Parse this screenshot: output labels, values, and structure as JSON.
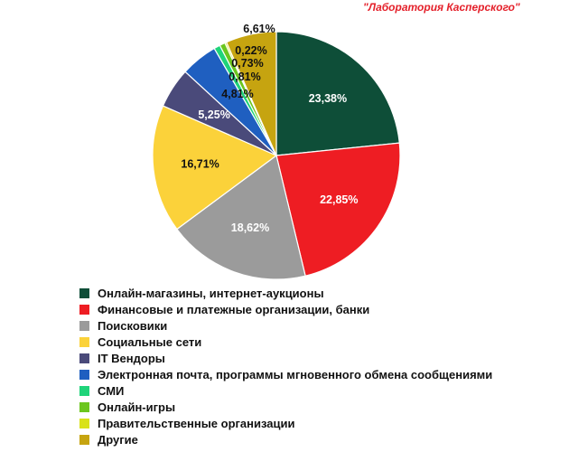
{
  "source_label": "\"Лаборатория Касперского\"",
  "chart_data": {
    "type": "pie",
    "start_angle_deg": 0,
    "direction": "clockwise",
    "legend_position": "bottom-left",
    "slices": [
      {
        "name": "Онлайн-магазины, интернет-аукционы",
        "value": 23.38,
        "label": "23,38%",
        "color": "#0e4e38",
        "label_color": "#ffffff"
      },
      {
        "name": "Финансовые и платежные организации, банки",
        "value": 22.85,
        "label": "22,85%",
        "color": "#ee1d23",
        "label_color": "#ffffff"
      },
      {
        "name": "Поисковики",
        "value": 18.62,
        "label": "18,62%",
        "color": "#9b9b9b",
        "label_color": "#ffffff"
      },
      {
        "name": "Социальные сети",
        "value": 16.71,
        "label": "16,71%",
        "color": "#fbd23a",
        "label_color": "#111111"
      },
      {
        "name": "IT Вендоры",
        "value": 5.25,
        "label": "5,25%",
        "color": "#4a4a7a",
        "label_color": "#ffffff"
      },
      {
        "name": "Электронная почта, программы мгновенного обмена сообщениями",
        "value": 4.81,
        "label": "4,81%",
        "color": "#1f5fc0",
        "label_color": "#111111"
      },
      {
        "name": "СМИ",
        "value": 0.81,
        "label": "0,81%",
        "color": "#1fd47a",
        "label_color": "#111111"
      },
      {
        "name": "Онлайн-игры",
        "value": 0.73,
        "label": "0,73%",
        "color": "#6cc61e",
        "label_color": "#111111"
      },
      {
        "name": "Правительственные организации",
        "value": 0.22,
        "label": "0,22%",
        "color": "#d9e21a",
        "label_color": "#111111"
      },
      {
        "name": "Другие",
        "value": 6.61,
        "label": "6,61%",
        "color": "#c6a410",
        "label_color": "#111111"
      }
    ]
  }
}
